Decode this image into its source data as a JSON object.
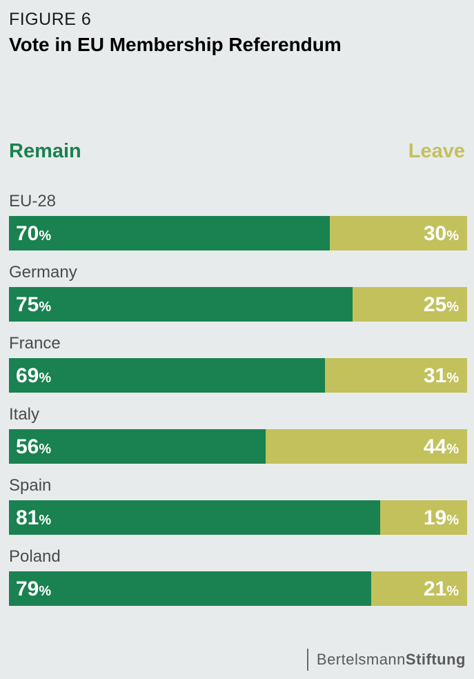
{
  "header": {
    "figure_label": "FIGURE 6",
    "title": "Vote in EU Membership Referendum"
  },
  "colors": {
    "remain": "#1a8150",
    "leave": "#c2c15c",
    "background": "#e8ebeb"
  },
  "chart_data": {
    "type": "bar",
    "orientation": "horizontal-stacked",
    "title": "Vote in EU Membership Referendum",
    "categories": [
      "EU-28",
      "Germany",
      "France",
      "Italy",
      "Spain",
      "Poland"
    ],
    "series": [
      {
        "name": "Remain",
        "values": [
          70,
          75,
          69,
          56,
          81,
          79
        ]
      },
      {
        "name": "Leave",
        "values": [
          30,
          25,
          31,
          44,
          19,
          21
        ]
      }
    ],
    "unit": "%",
    "xlim": [
      0,
      100
    ],
    "grid": false,
    "legend_placement": "top"
  },
  "footer": {
    "brand_light": "Bertelsmann",
    "brand_bold": "Stiftung"
  }
}
